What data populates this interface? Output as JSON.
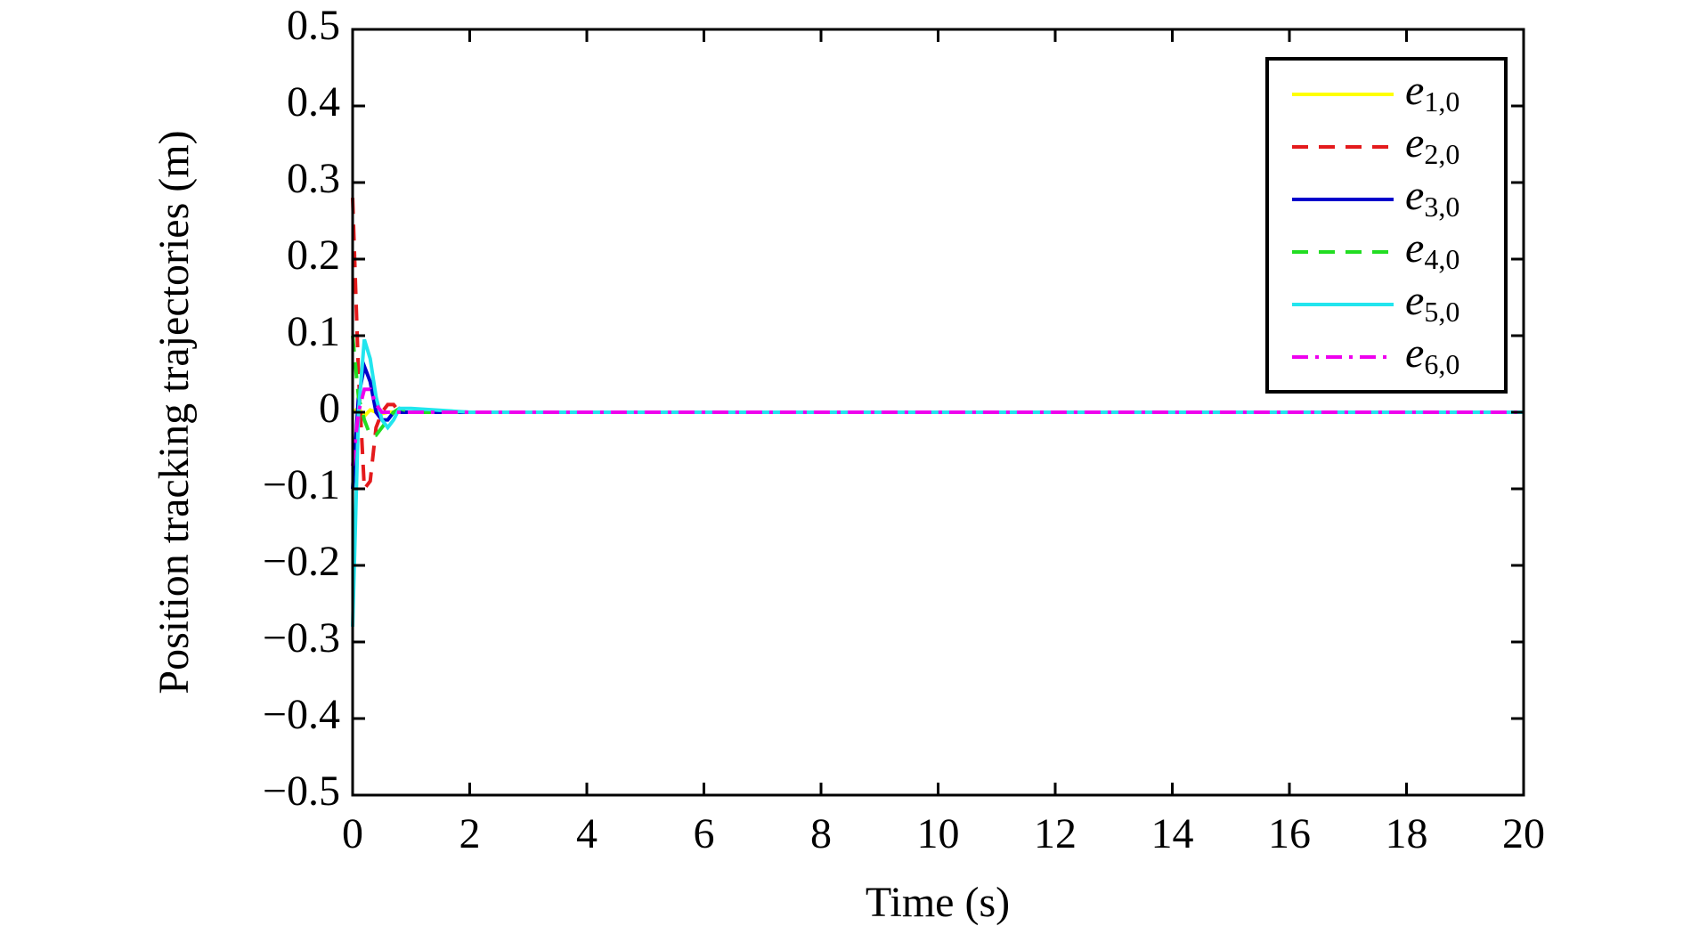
{
  "chart_data": {
    "type": "line",
    "xlabel": "Time (s)",
    "ylabel": "Position tracking trajectories (m)",
    "x": [
      0,
      0.1,
      0.2,
      0.3,
      0.4,
      0.5,
      0.6,
      0.7,
      0.8,
      1,
      2,
      20
    ],
    "series": [
      {
        "name": "e1,0",
        "color": "#ffff00",
        "dash": "solid",
        "values": [
          0,
          0.005,
          -0.005,
          0.003,
          0,
          -0.002,
          0,
          0,
          0,
          0,
          0,
          0
        ]
      },
      {
        "name": "e2,0",
        "color": "#e41a1c",
        "dash": "dashed",
        "values": [
          0.28,
          0.05,
          -0.1,
          -0.09,
          -0.02,
          0,
          0.01,
          0.01,
          0,
          0,
          0,
          0
        ]
      },
      {
        "name": "e3,0",
        "color": "#0000cc",
        "dash": "solid",
        "values": [
          -0.1,
          0.02,
          0.06,
          0.04,
          0,
          -0.01,
          -0.01,
          0,
          0,
          0,
          0,
          0
        ]
      },
      {
        "name": "e4,0",
        "color": "#22dd22",
        "dash": "dashed",
        "values": [
          0.1,
          0.02,
          -0.01,
          -0.03,
          -0.03,
          -0.02,
          -0.01,
          0,
          0.005,
          0,
          0,
          0
        ]
      },
      {
        "name": "e5,0",
        "color": "#22e5ee",
        "dash": "solid",
        "values": [
          -0.28,
          0,
          0.095,
          0.07,
          0.02,
          -0.01,
          -0.02,
          -0.01,
          0.005,
          0.005,
          0,
          0
        ]
      },
      {
        "name": "e6,0",
        "color": "#ee00ee",
        "dash": "dashdot",
        "values": [
          -0.07,
          0,
          0.03,
          0.03,
          0.01,
          0,
          0,
          0,
          0,
          0,
          0,
          0
        ]
      }
    ],
    "xlim": [
      0,
      20
    ],
    "xticks": [
      0,
      2,
      4,
      6,
      8,
      10,
      12,
      14,
      16,
      18,
      20
    ],
    "ylim": [
      -0.5,
      0.5
    ],
    "yticks": [
      {
        "value": -0.5,
        "label": "−0.5"
      },
      {
        "value": -0.4,
        "label": "−0.4"
      },
      {
        "value": -0.3,
        "label": "−0.3"
      },
      {
        "value": -0.2,
        "label": "−0.2"
      },
      {
        "value": -0.1,
        "label": "−0.1"
      },
      0,
      0.1,
      0.2,
      0.3,
      0.4,
      0.5
    ],
    "legend": "upper right",
    "grid": false
  }
}
